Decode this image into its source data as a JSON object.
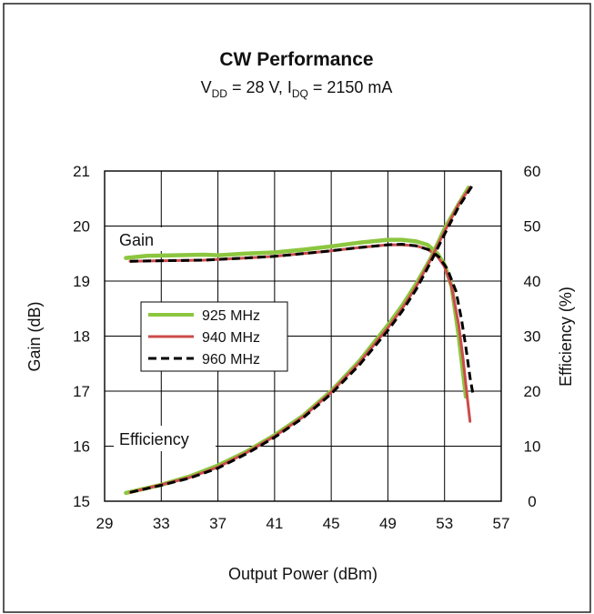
{
  "chart_data": {
    "type": "line",
    "title": "CW Performance",
    "subtitle": {
      "v_main": "V",
      "v_sub": "DD",
      "v_rest": " = 28 V, ",
      "i_main": "I",
      "i_sub": "DQ",
      "i_rest": " = 2150 mA"
    },
    "xlabel": "Output Power (dBm)",
    "ylabel_left": "Gain (dB)",
    "ylabel_right": "Efficiency (%)",
    "xlim": [
      29,
      57
    ],
    "ylim_left": [
      15,
      21
    ],
    "ylim_right": [
      0,
      60
    ],
    "x_ticks": [
      "29",
      "33",
      "37",
      "41",
      "45",
      "49",
      "53",
      "57"
    ],
    "y_left_ticks": [
      "15",
      "16",
      "17",
      "18",
      "19",
      "20",
      "21"
    ],
    "y_right_ticks": [
      "0",
      "10",
      "20",
      "30",
      "40",
      "50",
      "60"
    ],
    "grid": true,
    "legend_position": "center-left",
    "annotations": {
      "gain": "Gain",
      "efficiency": "Efficiency"
    },
    "series": [
      {
        "name": "925 MHz",
        "metric": "gain",
        "axis": "left",
        "color": "#8cc63f",
        "style": "solid",
        "x": [
          30.5,
          32,
          34,
          36,
          37,
          39,
          41,
          43,
          45,
          47,
          49,
          50,
          51,
          51.8,
          52.5,
          53,
          53.5,
          54,
          54.5
        ],
        "y": [
          19.42,
          19.46,
          19.47,
          19.48,
          19.47,
          19.5,
          19.52,
          19.57,
          19.63,
          19.7,
          19.75,
          19.75,
          19.72,
          19.66,
          19.5,
          19.3,
          18.9,
          18.0,
          16.9
        ]
      },
      {
        "name": "940 MHz",
        "metric": "gain",
        "axis": "left",
        "color": "#cc4b4b",
        "style": "solid",
        "x": [
          30.8,
          33,
          36,
          39,
          41,
          43,
          45,
          47,
          49,
          50,
          51,
          51.8,
          52.5,
          53,
          53.5,
          54,
          54.3,
          54.6,
          54.8
        ],
        "y": [
          19.36,
          19.37,
          19.38,
          19.42,
          19.45,
          19.5,
          19.55,
          19.61,
          19.66,
          19.66,
          19.64,
          19.58,
          19.45,
          19.26,
          18.9,
          18.2,
          17.6,
          16.9,
          16.45
        ]
      },
      {
        "name": "960 MHz",
        "metric": "gain",
        "axis": "left",
        "color": "#000000",
        "style": "dashed",
        "x": [
          30.8,
          33,
          36,
          39,
          41,
          43,
          45,
          47,
          49,
          50,
          51,
          52,
          52.6,
          53.2,
          53.8,
          54.2,
          54.5,
          54.8,
          55
        ],
        "y": [
          19.36,
          19.37,
          19.38,
          19.42,
          19.45,
          19.5,
          19.55,
          19.61,
          19.66,
          19.67,
          19.64,
          19.56,
          19.44,
          19.22,
          18.82,
          18.3,
          17.8,
          17.25,
          16.95
        ]
      },
      {
        "name": "925 MHz",
        "metric": "efficiency",
        "axis": "right",
        "color": "#8cc63f",
        "style": "solid",
        "x": [
          30.5,
          33,
          35,
          37,
          39,
          41,
          43,
          45,
          47,
          49,
          50,
          51,
          52,
          53,
          54,
          54.7
        ],
        "y": [
          1.5,
          3,
          4.5,
          6.5,
          9,
          12,
          15.5,
          20,
          25.5,
          32,
          35.5,
          39.5,
          44,
          49.5,
          54,
          57
        ]
      },
      {
        "name": "940 MHz",
        "metric": "efficiency",
        "axis": "right",
        "color": "#cc4b4b",
        "style": "solid",
        "x": [
          30.8,
          33,
          35,
          37,
          39,
          41,
          43,
          45,
          47,
          49,
          50,
          51,
          52,
          53,
          54,
          54.8
        ],
        "y": [
          1.6,
          3,
          4.3,
          6.2,
          8.8,
          11.8,
          15.3,
          19.8,
          25.2,
          31.5,
          35,
          39,
          43.8,
          49,
          54,
          57
        ]
      },
      {
        "name": "960 MHz",
        "metric": "efficiency",
        "axis": "right",
        "color": "#000000",
        "style": "dashed",
        "x": [
          30.8,
          33,
          35,
          37,
          39,
          41,
          43,
          45,
          47,
          49,
          50,
          51,
          52,
          53,
          54,
          55
        ],
        "y": [
          1.6,
          2.9,
          4.2,
          6.0,
          8.6,
          11.6,
          15.1,
          19.5,
          24.8,
          31,
          34.5,
          38.5,
          43.3,
          48.5,
          53.5,
          57.5
        ]
      }
    ]
  }
}
